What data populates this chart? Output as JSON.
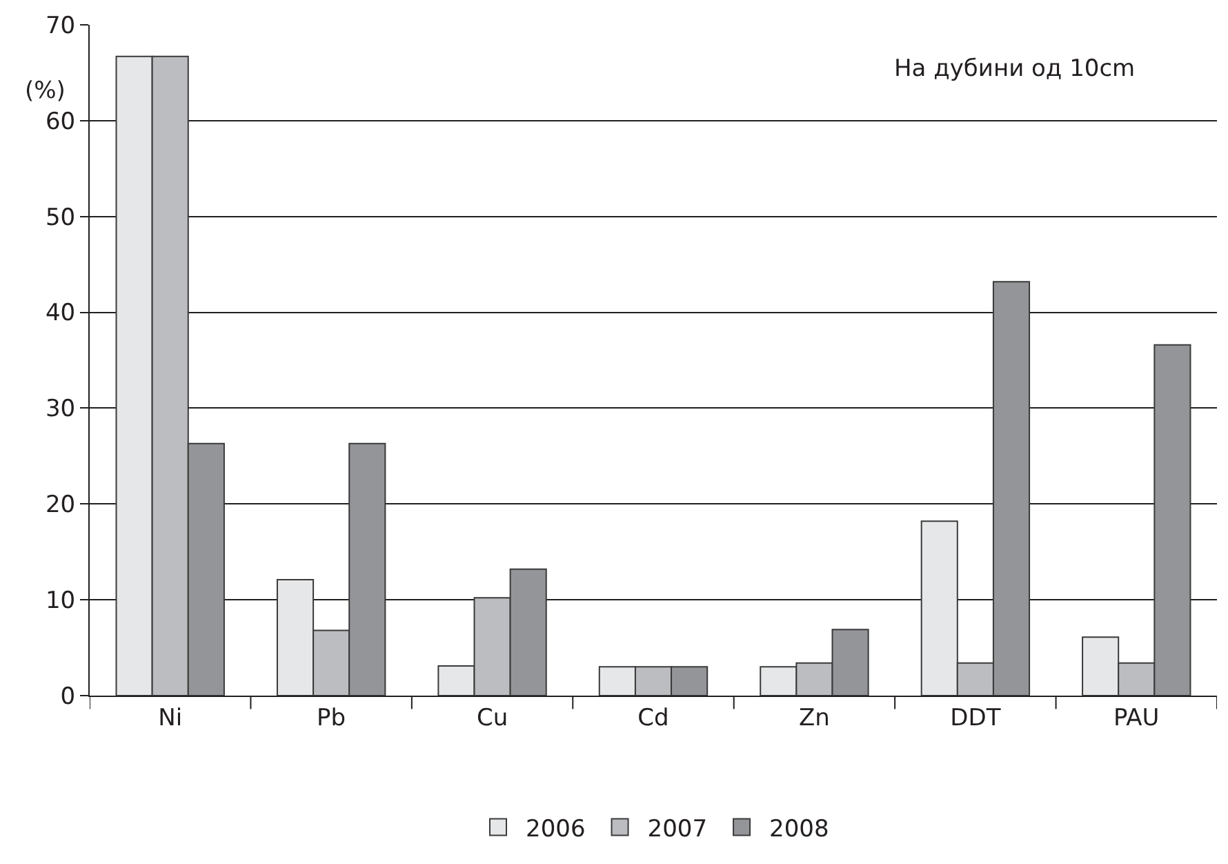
{
  "chart_data": {
    "type": "bar",
    "ylabel": "(%)",
    "annotations": [
      "На дубини од 10cm"
    ],
    "categories": [
      "Ni",
      "Pb",
      "Cu",
      "Cd",
      "Zn",
      "DDT",
      "PAU"
    ],
    "series": [
      {
        "name": "2006",
        "color": "#e6e7e8",
        "values": [
          66.7,
          12.1,
          3.1,
          3,
          3,
          18.2,
          6.1
        ]
      },
      {
        "name": "2007",
        "color": "#bcbdc0",
        "values": [
          66.7,
          6.8,
          10.2,
          3,
          3.4,
          3.4,
          3.4
        ]
      },
      {
        "name": "2008",
        "color": "#939598",
        "values": [
          26.3,
          26.3,
          13.2,
          3,
          6.9,
          43.2,
          36.6
        ]
      }
    ],
    "ylim": [
      0,
      70
    ],
    "yticks": [
      0,
      10,
      20,
      30,
      40,
      50,
      60,
      70
    ],
    "grid": "y",
    "legend": "bottom"
  }
}
